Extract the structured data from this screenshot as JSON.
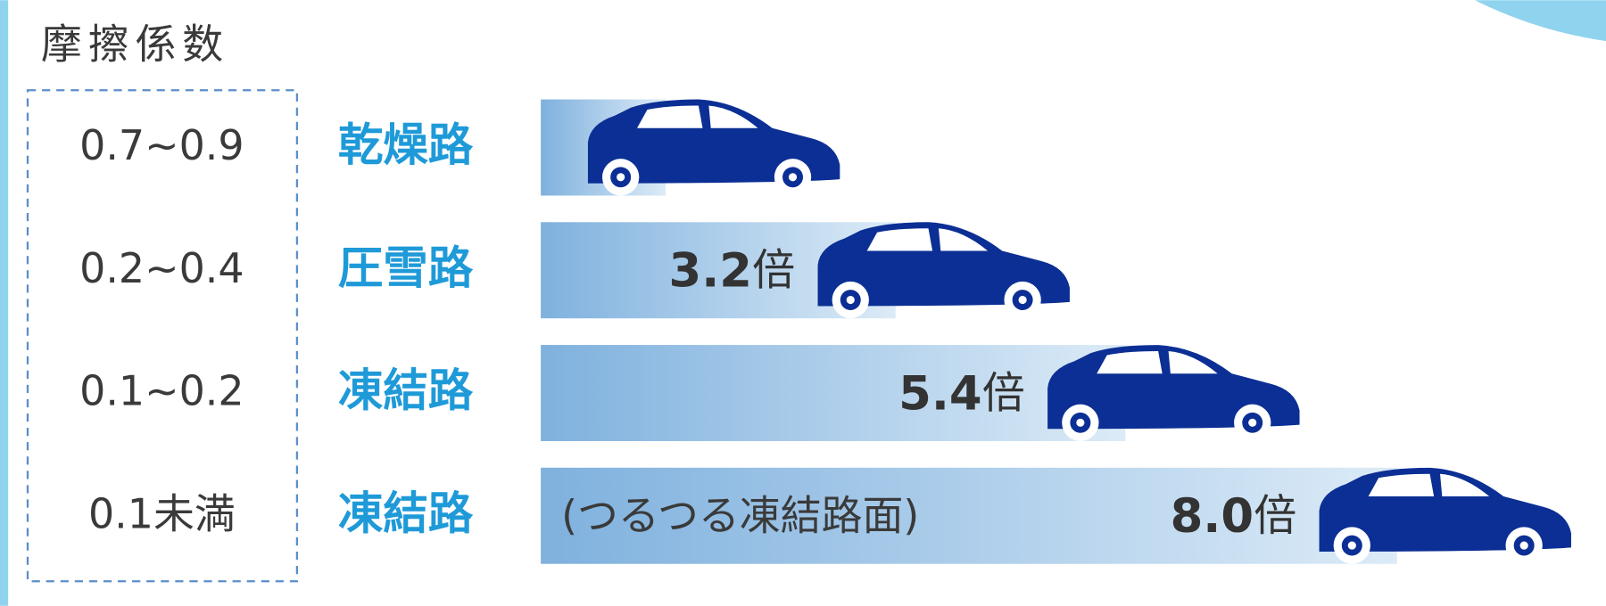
{
  "chart_data": {
    "type": "bar",
    "title": "摩擦係数",
    "coefficients": [
      "0.7~0.9",
      "0.2~0.4",
      "0.1~0.2",
      "0.1未満"
    ],
    "categories": [
      "乾燥路",
      "圧雪路",
      "凍結路",
      "凍結路"
    ],
    "notes": [
      null,
      null,
      null,
      "(つるつる凍結路面)"
    ],
    "values": [
      1,
      3.2,
      5.4,
      8.0
    ],
    "value_labels": [
      null,
      "3.2",
      "5.4",
      "8.0"
    ],
    "unit": "倍",
    "color": "#0b2f94"
  }
}
